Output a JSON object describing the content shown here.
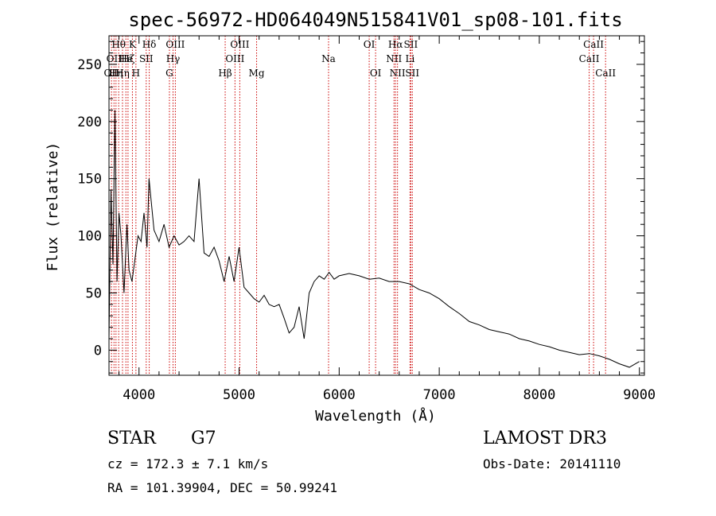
{
  "chart_data": {
    "type": "line",
    "title": "spec-56972-HD064049N515841V01_sp08-101.fits",
    "xlabel": "Wavelength (Å)",
    "ylabel": "Flux (relative)",
    "xlim": [
      3700,
      9050
    ],
    "ylim": [
      -22,
      275
    ],
    "xticks": [
      4000,
      5000,
      6000,
      7000,
      8000,
      9000
    ],
    "yticks": [
      0,
      50,
      100,
      150,
      200,
      250
    ],
    "series": [
      {
        "name": "spectrum",
        "x": [
          3700,
          3720,
          3740,
          3760,
          3780,
          3800,
          3820,
          3850,
          3880,
          3900,
          3930,
          3960,
          3990,
          4020,
          4050,
          4080,
          4100,
          4150,
          4200,
          4250,
          4300,
          4350,
          4400,
          4450,
          4500,
          4550,
          4600,
          4650,
          4700,
          4750,
          4800,
          4850,
          4900,
          4950,
          5000,
          5050,
          5100,
          5150,
          5200,
          5250,
          5300,
          5350,
          5400,
          5450,
          5500,
          5550,
          5600,
          5650,
          5700,
          5750,
          5800,
          5850,
          5900,
          5950,
          6000,
          6100,
          6200,
          6300,
          6400,
          6500,
          6600,
          6700,
          6800,
          6900,
          7000,
          7100,
          7200,
          7300,
          7400,
          7500,
          7600,
          7700,
          7800,
          7900,
          8000,
          8100,
          8200,
          8300,
          8400,
          8500,
          8600,
          8700,
          8800,
          8900,
          9000
        ],
        "values": [
          10,
          140,
          75,
          210,
          60,
          120,
          100,
          50,
          110,
          70,
          60,
          80,
          100,
          95,
          120,
          90,
          150,
          105,
          95,
          110,
          90,
          100,
          92,
          95,
          100,
          95,
          150,
          85,
          82,
          90,
          78,
          60,
          82,
          60,
          90,
          55,
          50,
          45,
          42,
          48,
          40,
          38,
          40,
          28,
          15,
          20,
          38,
          10,
          50,
          60,
          65,
          62,
          68,
          62,
          65,
          67,
          65,
          62,
          63,
          60,
          60,
          58,
          53,
          50,
          45,
          38,
          32,
          25,
          22,
          18,
          16,
          14,
          10,
          8,
          5,
          3,
          0,
          -2,
          -4,
          -3,
          -5,
          -8,
          -12,
          -15,
          -10
        ]
      }
    ],
    "spectral_lines": [
      {
        "wl": 3725,
        "labels": [
          "OII"
        ],
        "row": 2
      },
      {
        "wl": 3750,
        "labels": [
          "OII"
        ],
        "row": 1
      },
      {
        "wl": 3770,
        "labels": [
          "Hη"
        ],
        "row": 2
      },
      {
        "wl": 3797,
        "labels": [
          "Hθ"
        ],
        "row": 0
      },
      {
        "wl": 3835,
        "labels": [
          "Hη"
        ],
        "row": 2
      },
      {
        "wl": 3869,
        "labels": [
          "He"
        ],
        "row": 1
      },
      {
        "wl": 3890,
        "labels": [
          "Hζ"
        ],
        "row": 1
      },
      {
        "wl": 3934,
        "labels": [
          "K"
        ],
        "row": 0
      },
      {
        "wl": 3969,
        "labels": [
          "H"
        ],
        "row": 2
      },
      {
        "wl": 4072,
        "labels": [
          "SII"
        ],
        "row": 1
      },
      {
        "wl": 4102,
        "labels": [
          "Hδ"
        ],
        "row": 0
      },
      {
        "wl": 4304,
        "labels": [
          "G"
        ],
        "row": 2
      },
      {
        "wl": 4340,
        "labels": [
          "Hγ"
        ],
        "row": 1
      },
      {
        "wl": 4363,
        "labels": [
          "OIII"
        ],
        "row": 0
      },
      {
        "wl": 4861,
        "labels": [
          "Hβ"
        ],
        "row": 2
      },
      {
        "wl": 4959,
        "labels": [
          "OIII"
        ],
        "row": 1
      },
      {
        "wl": 5007,
        "labels": [
          "OIII"
        ],
        "row": 0
      },
      {
        "wl": 5175,
        "labels": [
          "Mg"
        ],
        "row": 2
      },
      {
        "wl": 5894,
        "labels": [
          "Na"
        ],
        "row": 1
      },
      {
        "wl": 6300,
        "labels": [
          "OI"
        ],
        "row": 0
      },
      {
        "wl": 6364,
        "labels": [
          "OI"
        ],
        "row": 2
      },
      {
        "wl": 6548,
        "labels": [
          "NII"
        ],
        "row": 1
      },
      {
        "wl": 6563,
        "labels": [
          "Hα"
        ],
        "row": 0
      },
      {
        "wl": 6583,
        "labels": [
          "NII"
        ],
        "row": 2
      },
      {
        "wl": 6708,
        "labels": [
          "Li"
        ],
        "row": 1
      },
      {
        "wl": 6716,
        "labels": [
          "SII"
        ],
        "row": 0
      },
      {
        "wl": 6731,
        "labels": [
          "SII"
        ],
        "row": 2
      },
      {
        "wl": 8498,
        "labels": [
          "CaII"
        ],
        "row": 1
      },
      {
        "wl": 8542,
        "labels": [
          "CaII"
        ],
        "row": 0
      },
      {
        "wl": 8662,
        "labels": [
          "CaII"
        ],
        "row": 2
      }
    ]
  },
  "info": {
    "class": "STAR",
    "subclass": "G7",
    "survey": "LAMOST DR3",
    "redshift": "cz = 172.3 ± 7.1 km/s",
    "obs_date": "Obs-Date: 20141110",
    "coords": "RA = 101.39904, DEC =  50.99241"
  },
  "colors": {
    "line": "#000000",
    "marker": "#cc0000"
  }
}
